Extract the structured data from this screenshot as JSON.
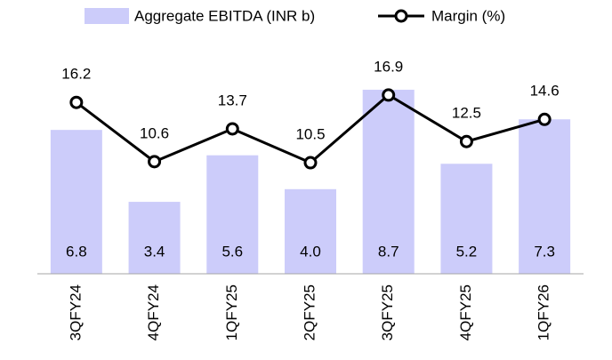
{
  "chart_data": {
    "type": "bar",
    "categories": [
      "3QFY24",
      "4QFY24",
      "1QFY25",
      "2QFY25",
      "3QFY25",
      "4QFY25",
      "1QFY26"
    ],
    "series": [
      {
        "name": "Aggregate EBITDA (INR b)",
        "type": "bar",
        "color": "#ccccfa",
        "values": [
          6.8,
          3.4,
          5.6,
          4.0,
          8.7,
          5.2,
          7.3
        ],
        "value_labels": [
          "6.8",
          "3.4",
          "5.6",
          "4.0",
          "8.7",
          "5.2",
          "7.3"
        ]
      },
      {
        "name": "Margin (%)",
        "type": "line",
        "axis": "y2",
        "color": "#000000",
        "values": [
          16.2,
          10.6,
          13.7,
          10.5,
          16.9,
          12.5,
          14.6
        ]
      }
    ],
    "ylim": [
      0,
      10
    ],
    "y2lim": [
      0,
      20
    ]
  }
}
